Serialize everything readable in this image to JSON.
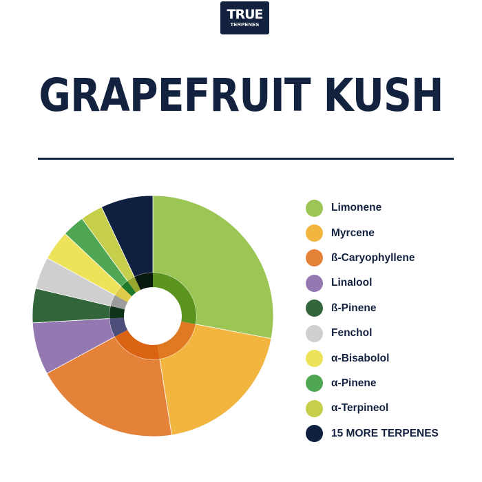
{
  "logo": {
    "line1": "TRUE",
    "line2": "TERPENES"
  },
  "title": "GRAPEFRUIT KUSH",
  "chart_data": {
    "type": "pie",
    "style": "donut",
    "legend_position": "right",
    "categories": [
      "Limonene",
      "Myrcene",
      "ß-Caryophyllene",
      "Linalool",
      "ß-Pinene",
      "Fenchol",
      "α-Bisabolol",
      "α-Pinene",
      "α-Terpineol",
      "15 MORE TERPENES"
    ],
    "values": [
      28,
      19.5,
      19.6,
      7,
      4.6,
      4.3,
      4,
      3,
      3,
      7
    ],
    "colors": [
      "#9bc554",
      "#f2b640",
      "#e4823a",
      "#9478b2",
      "#33653a",
      "#cfcfcf",
      "#ece35a",
      "#4fa653",
      "#c5cf4c",
      "#0f1f3f"
    ],
    "inner_colors": [
      "#5b951f",
      "#e07a22",
      "#db6414",
      "#4b4f7a",
      "#0f3318",
      "#9c9c9c",
      "#dfca49",
      "#1e7a2a",
      "#98a52e",
      "#08190f"
    ]
  }
}
